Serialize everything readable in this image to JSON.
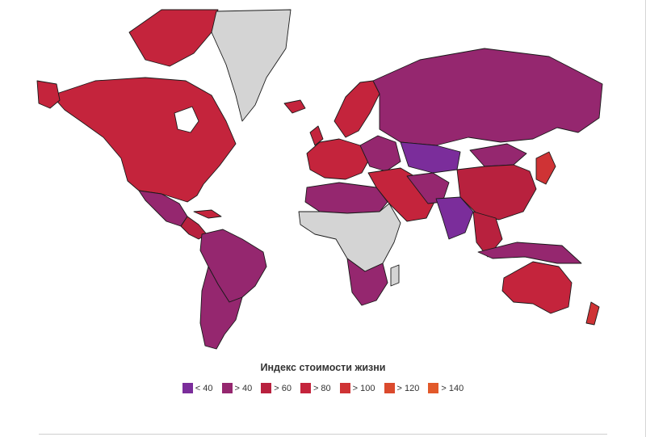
{
  "legend": {
    "title": "Индекс стоимости жизни",
    "items": [
      {
        "label": "< 40",
        "color": "#7b2d9b"
      },
      {
        "label": "> 40",
        "color": "#95276f"
      },
      {
        "label": "> 60",
        "color": "#b8213e"
      },
      {
        "label": "> 80",
        "color": "#c4243c"
      },
      {
        "label": "> 100",
        "color": "#cf3335"
      },
      {
        "label": "> 120",
        "color": "#db4a2d"
      },
      {
        "label": "> 140",
        "color": "#e2592a"
      }
    ]
  },
  "colors": {
    "no_data": "#d4d4d4",
    "border": "#1a1a1a",
    "background": "#ffffff"
  }
}
